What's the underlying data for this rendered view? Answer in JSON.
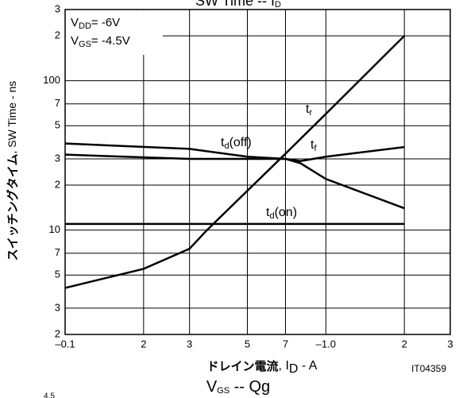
{
  "chart_data": {
    "type": "line",
    "title": [
      "SW Time -- I",
      "D"
    ],
    "xlabel_jp": "ドレイン電流",
    "xlabel": [
      ", I",
      "D",
      " - A"
    ],
    "ylabel_jp": "スイッチングタイム",
    "ylabel": [
      ", SW Time - ns"
    ],
    "annotations": [
      [
        "V",
        "DD",
        "= -6V"
      ],
      [
        "V",
        "GS",
        "= -4.5V"
      ]
    ],
    "code": "IT04359",
    "footer": [
      "V",
      "GS",
      " -- Qg"
    ],
    "footer_cut": "4.5",
    "xscale": "log",
    "yscale": "log",
    "grid": true,
    "color": "#000000",
    "xlim": [
      0.1,
      3
    ],
    "ylim": [
      2,
      300
    ],
    "xticks": [
      {
        "value": 0.1,
        "label": "–0.1"
      },
      {
        "value": 0.2,
        "label": "2"
      },
      {
        "value": 0.3,
        "label": "3"
      },
      {
        "value": 0.5,
        "label": "5"
      },
      {
        "value": 0.7,
        "label": "7"
      },
      {
        "value": 1.0,
        "label": "–1.0"
      },
      2,
      3
    ],
    "yticks": [
      2,
      3,
      5,
      7,
      10,
      {
        "value": 20,
        "label": "2"
      },
      {
        "value": 30,
        "label": "3"
      },
      {
        "value": 50,
        "label": "5"
      },
      {
        "value": 70,
        "label": "7"
      },
      100,
      {
        "value": 200,
        "label": "2"
      },
      {
        "value": 300,
        "label": "3"
      }
    ],
    "series": [
      {
        "name": [
          "t",
          "d",
          "(off)"
        ],
        "color": "#000000",
        "x": [
          0.1,
          0.3,
          0.5,
          0.7,
          0.8,
          1.0,
          2.0
        ],
        "values": [
          38,
          35,
          31,
          30,
          28,
          22,
          14
        ]
      },
      {
        "name": [
          "t",
          "r"
        ],
        "color": "#000000",
        "x": [
          0.1,
          0.2,
          0.3,
          0.35,
          0.7,
          1.0,
          2.0
        ],
        "values": [
          4.1,
          5.5,
          7.5,
          10,
          32.5,
          60,
          200
        ]
      },
      {
        "name": [
          "t",
          "f"
        ],
        "color": "#000000",
        "x": [
          0.1,
          0.3,
          0.5,
          0.7,
          0.8,
          1.0,
          2.0
        ],
        "values": [
          32,
          30,
          30,
          30,
          29,
          31,
          36
        ]
      },
      {
        "name": [
          "t",
          "d",
          "(on)"
        ],
        "color": "#000000",
        "x": [
          0.1,
          2.0
        ],
        "values": [
          11,
          11
        ]
      }
    ]
  }
}
